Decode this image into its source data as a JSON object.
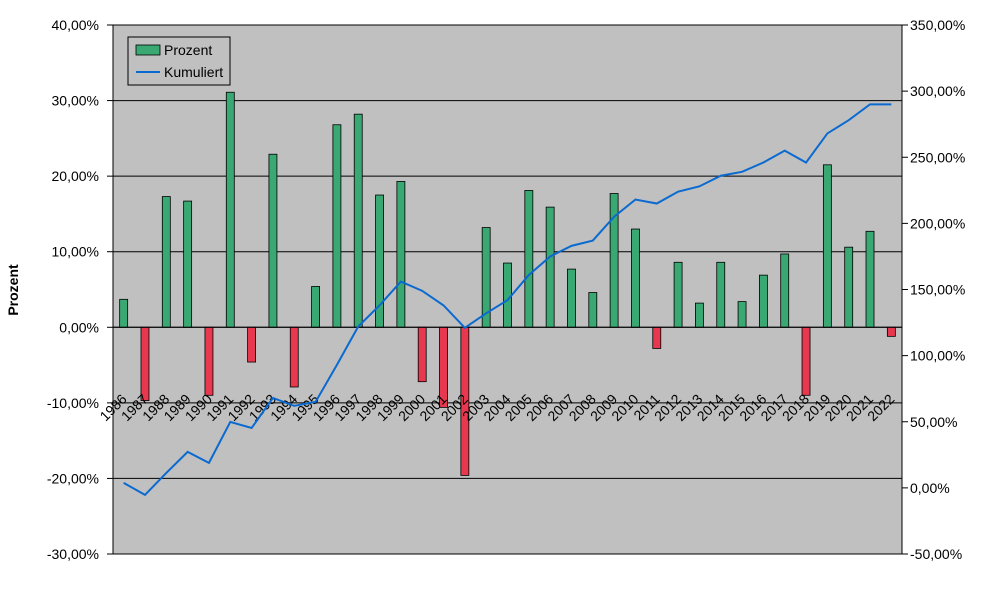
{
  "chart_data": {
    "type": "bar",
    "y_label": "Prozent",
    "categories": [
      "1986",
      "1987",
      "1988",
      "1989",
      "1990",
      "1991",
      "1992",
      "1993",
      "1994",
      "1995",
      "1996",
      "1997",
      "1998",
      "1999",
      "2000",
      "2001",
      "2002",
      "2003",
      "2004",
      "2005",
      "2006",
      "2007",
      "2008",
      "2009",
      "2010",
      "2011",
      "2012",
      "2013",
      "2014",
      "2015",
      "2016",
      "2017",
      "2018",
      "2019",
      "2020",
      "2021",
      "2022"
    ],
    "series": [
      {
        "name": "Prozent",
        "type": "bar",
        "color": "#3aa873",
        "negative_color": "#e8384f",
        "values": [
          3.7,
          -9.7,
          17.3,
          16.7,
          -9.0,
          31.1,
          -4.6,
          22.9,
          -7.9,
          5.4,
          26.8,
          28.2,
          17.5,
          19.3,
          -7.2,
          -10.6,
          -19.6,
          13.2,
          8.5,
          18.1,
          15.9,
          7.7,
          4.6,
          17.7,
          13.0,
          -2.8,
          8.6,
          3.2,
          8.6,
          3.4,
          6.9,
          9.7,
          -9.0,
          21.5,
          10.6,
          12.7,
          -1.2
        ]
      },
      {
        "name": "Kumuliert",
        "type": "line",
        "axis": "y2",
        "color": "#0a6ad0",
        "values": [
          3.8,
          -5.3,
          11.3,
          27.2,
          18.9,
          49.9,
          45.3,
          68,
          62,
          65,
          93,
          122,
          138,
          156,
          149,
          138,
          121,
          132,
          142,
          161,
          175,
          183,
          187,
          205,
          218,
          215,
          224,
          228,
          236,
          239,
          246,
          255,
          246,
          268,
          278,
          290,
          290
        ]
      }
    ],
    "ylim": [
      -30,
      40
    ],
    "yticks": [
      {
        "value": -30,
        "label": "-30,00%"
      },
      {
        "value": -20,
        "label": "-20,00%"
      },
      {
        "value": -10,
        "label": "-10,00%"
      },
      {
        "value": 0,
        "label": "0,00%"
      },
      {
        "value": 10,
        "label": "10,00%"
      },
      {
        "value": 20,
        "label": "20,00%"
      },
      {
        "value": 30,
        "label": "30,00%"
      },
      {
        "value": 40,
        "label": "40,00%"
      }
    ],
    "y2lim": [
      -50,
      350
    ],
    "y2ticks": [
      {
        "value": -50,
        "label": "-50,00%"
      },
      {
        "value": 0,
        "label": "0,00%"
      },
      {
        "value": 50,
        "label": "50,00%"
      },
      {
        "value": 100,
        "label": "100,00%"
      },
      {
        "value": 150,
        "label": "150,00%"
      },
      {
        "value": 200,
        "label": "200,00%"
      },
      {
        "value": 250,
        "label": "250,00%"
      },
      {
        "value": 300,
        "label": "300,00%"
      },
      {
        "value": 350,
        "label": "350,00%"
      }
    ],
    "grid": true,
    "legend": "top-left",
    "background": "#c0c0c0"
  }
}
